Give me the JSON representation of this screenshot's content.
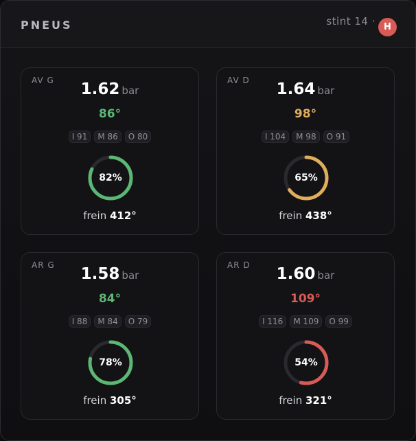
{
  "header": {
    "title": "PNEUS",
    "stint": "stint 14 ·",
    "badge": "H"
  },
  "colors": {
    "green": "#5cb774",
    "amber": "#e0ad5c",
    "red": "#d85b55",
    "track": "#2a2a2e"
  },
  "tires": [
    {
      "id": "AV G",
      "pressure": "1.62",
      "unit": "bar",
      "temp": "86°",
      "status": "green",
      "inner": "I 91",
      "middle": "M 86",
      "outer": "O 80",
      "wear": 82,
      "wear_label": "82%",
      "brake_label": "frein",
      "brake_temp": "412°"
    },
    {
      "id": "AV D",
      "pressure": "1.64",
      "unit": "bar",
      "temp": "98°",
      "status": "amber",
      "inner": "I 104",
      "middle": "M 98",
      "outer": "O 91",
      "wear": 65,
      "wear_label": "65%",
      "brake_label": "frein",
      "brake_temp": "438°"
    },
    {
      "id": "AR G",
      "pressure": "1.58",
      "unit": "bar",
      "temp": "84°",
      "status": "green",
      "inner": "I 88",
      "middle": "M 84",
      "outer": "O 79",
      "wear": 78,
      "wear_label": "78%",
      "brake_label": "frein",
      "brake_temp": "305°"
    },
    {
      "id": "AR D",
      "pressure": "1.60",
      "unit": "bar",
      "temp": "109°",
      "status": "red",
      "inner": "I 116",
      "middle": "M 109",
      "outer": "O 99",
      "wear": 54,
      "wear_label": "54%",
      "brake_label": "frein",
      "brake_temp": "321°"
    }
  ]
}
